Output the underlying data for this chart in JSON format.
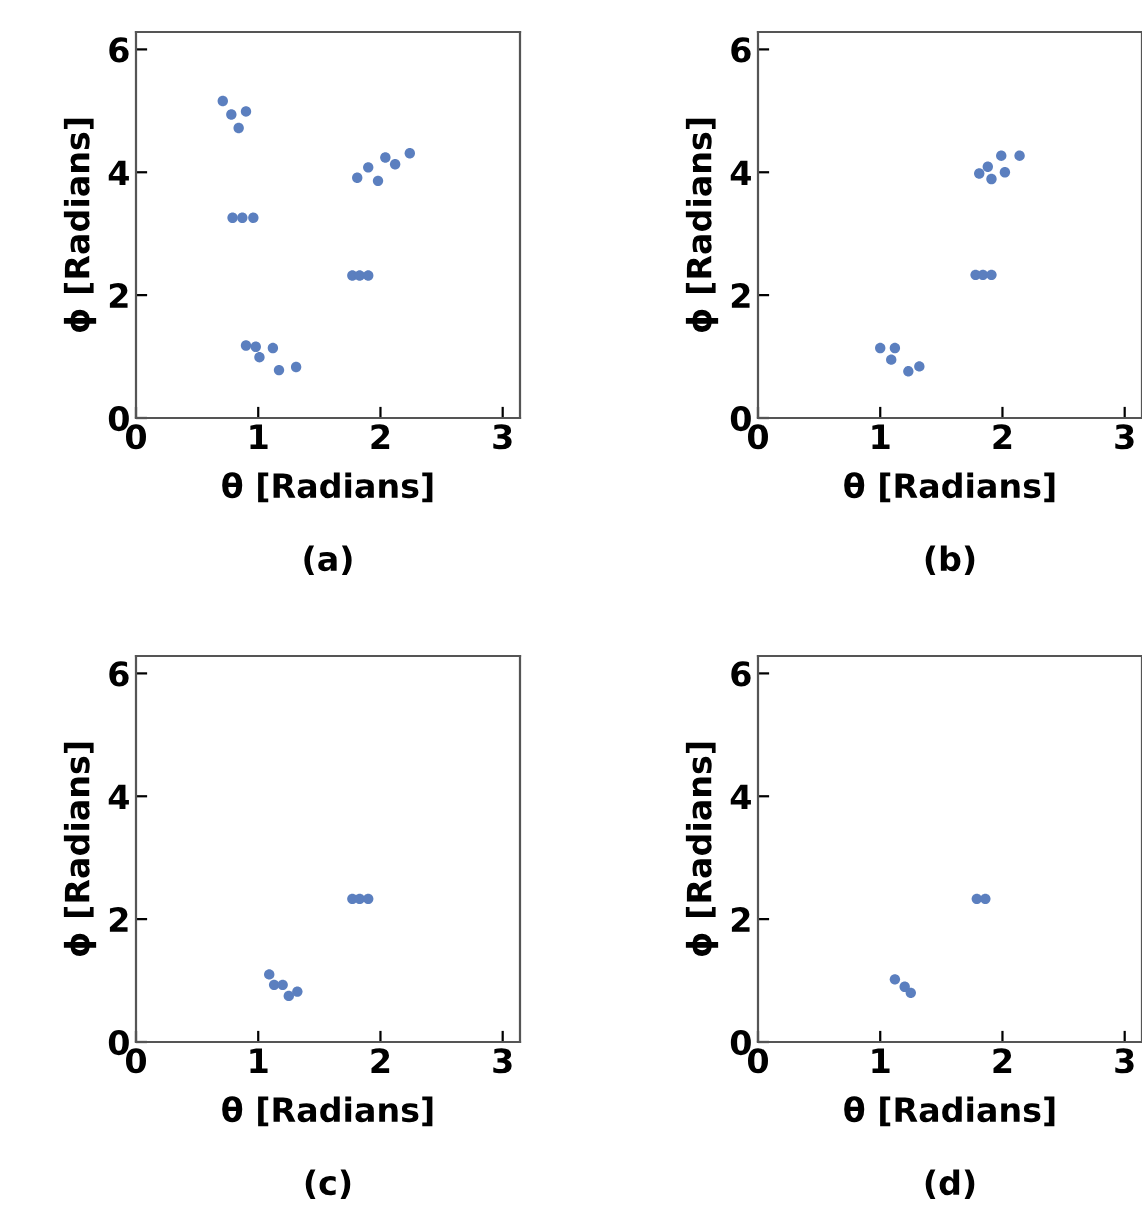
{
  "chart_data": [
    {
      "type": "scatter",
      "xlabel": "θ [Radians]",
      "ylabel": "ϕ [Radians]",
      "annotations": [
        "(a)"
      ],
      "xlim": [
        0,
        3.1416
      ],
      "ylim": [
        0,
        6.2832
      ],
      "xticks": [
        0,
        1,
        2,
        3
      ],
      "yticks": [
        0,
        2,
        4,
        6
      ],
      "grid": false,
      "series": [
        {
          "color": "#5b7fbf",
          "x": [
            0.71,
            0.78,
            0.84,
            0.9,
            0.79,
            0.87,
            0.96,
            1.81,
            1.9,
            1.98,
            2.04,
            2.12,
            2.24,
            1.77,
            1.83,
            1.9,
            0.9,
            0.98,
            1.01,
            1.12,
            1.17,
            1.31
          ],
          "values": [
            5.16,
            4.94,
            4.72,
            4.99,
            3.26,
            3.26,
            3.26,
            3.91,
            4.08,
            3.86,
            4.24,
            4.13,
            4.31,
            2.32,
            2.32,
            2.32,
            1.18,
            1.16,
            0.99,
            1.14,
            0.78,
            0.83
          ]
        }
      ]
    },
    {
      "type": "scatter",
      "xlabel": "θ [Radians]",
      "ylabel": "ϕ [Radians]",
      "annotations": [
        "(b)"
      ],
      "xlim": [
        0,
        3.1416
      ],
      "ylim": [
        0,
        6.2832
      ],
      "xticks": [
        0,
        1,
        2,
        3
      ],
      "yticks": [
        0,
        2,
        4,
        6
      ],
      "grid": false,
      "series": [
        {
          "color": "#5b7fbf",
          "x": [
            1.81,
            1.88,
            1.91,
            1.99,
            2.02,
            2.14,
            1.78,
            1.84,
            1.91,
            1.0,
            1.09,
            1.12,
            1.23,
            1.32
          ],
          "values": [
            3.98,
            4.09,
            3.89,
            4.27,
            4.0,
            4.27,
            2.33,
            2.33,
            2.33,
            1.14,
            0.95,
            1.14,
            0.76,
            0.84
          ]
        }
      ]
    },
    {
      "type": "scatter",
      "xlabel": "θ [Radians]",
      "ylabel": "ϕ [Radians]",
      "annotations": [
        "(c)"
      ],
      "xlim": [
        0,
        3.1416
      ],
      "ylim": [
        0,
        6.2832
      ],
      "xticks": [
        0,
        1,
        2,
        3
      ],
      "yticks": [
        0,
        2,
        4,
        6
      ],
      "grid": false,
      "series": [
        {
          "color": "#5b7fbf",
          "x": [
            1.77,
            1.83,
            1.9,
            1.09,
            1.13,
            1.2,
            1.25,
            1.32
          ],
          "values": [
            2.33,
            2.33,
            2.33,
            1.1,
            0.93,
            0.93,
            0.75,
            0.82
          ]
        }
      ]
    },
    {
      "type": "scatter",
      "xlabel": "θ [Radians]",
      "ylabel": "ϕ [Radians]",
      "annotations": [
        "(d)"
      ],
      "xlim": [
        0,
        3.1416
      ],
      "ylim": [
        0,
        6.2832
      ],
      "xticks": [
        0,
        1,
        2,
        3
      ],
      "yticks": [
        0,
        2,
        4,
        6
      ],
      "grid": false,
      "series": [
        {
          "color": "#5b7fbf",
          "x": [
            1.79,
            1.86,
            1.12,
            1.2,
            1.25
          ],
          "values": [
            2.33,
            2.33,
            1.02,
            0.9,
            0.8
          ]
        }
      ]
    }
  ]
}
